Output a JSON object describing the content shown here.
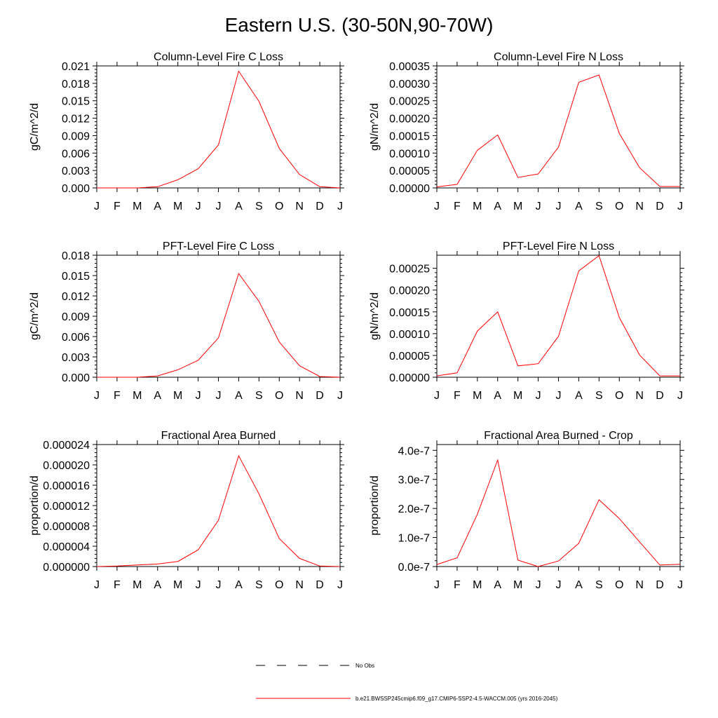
{
  "figure": {
    "title": "Eastern U.S. (30-50N,90-70W)"
  },
  "chart_data": [
    {
      "type": "line",
      "title": "Column-Level Fire C Loss",
      "ylabel": "gC/m^2/d",
      "xlabel": "",
      "categories": [
        "J",
        "F",
        "M",
        "A",
        "M",
        "J",
        "J",
        "A",
        "S",
        "O",
        "N",
        "D",
        "J"
      ],
      "ylim": [
        0,
        0.021
      ],
      "yticks": [
        0,
        0.003,
        0.006,
        0.009,
        0.012,
        0.015,
        0.018,
        0.021
      ],
      "ytick_labels": [
        "0.000",
        "0.003",
        "0.006",
        "0.009",
        "0.012",
        "0.015",
        "0.018",
        "0.021"
      ],
      "series": [
        {
          "name": "b.e21.BWSSP245cmip6.f09_g17.CMIP6-SSP2-4.5-WACCM.005 (yrs 2016-2045)",
          "values": [
            0.0,
            0.0,
            0.0,
            0.0002,
            0.0014,
            0.0033,
            0.0074,
            0.0201,
            0.0149,
            0.0068,
            0.0023,
            0.0002,
            0.0
          ]
        }
      ]
    },
    {
      "type": "line",
      "title": "Column-Level Fire N Loss",
      "ylabel": "gN/m^2/d",
      "xlabel": "",
      "categories": [
        "J",
        "F",
        "M",
        "A",
        "M",
        "J",
        "J",
        "A",
        "S",
        "O",
        "N",
        "D",
        "J"
      ],
      "ylim": [
        0,
        0.00035
      ],
      "yticks": [
        0,
        5e-05,
        0.0001,
        0.00015,
        0.0002,
        0.00025,
        0.0003,
        0.00035
      ],
      "ytick_labels": [
        "0.00000",
        "0.00005",
        "0.00010",
        "0.00015",
        "0.00020",
        "0.00025",
        "0.00030",
        "0.00035"
      ],
      "series": [
        {
          "name": "b.e21.BWSSP245cmip6.f09_g17.CMIP6-SSP2-4.5-WACCM.005 (yrs 2016-2045)",
          "values": [
            3e-06,
            1e-05,
            0.000108,
            0.000152,
            3e-05,
            4e-05,
            0.000117,
            0.000303,
            0.000324,
            0.000156,
            5.8e-05,
            4e-06,
            4e-06
          ]
        }
      ]
    },
    {
      "type": "line",
      "title": "PFT-Level Fire C Loss",
      "ylabel": "gC/m^2/d",
      "xlabel": "",
      "categories": [
        "J",
        "F",
        "M",
        "A",
        "M",
        "J",
        "J",
        "A",
        "S",
        "O",
        "N",
        "D",
        "J"
      ],
      "ylim": [
        0,
        0.018
      ],
      "yticks": [
        0,
        0.003,
        0.006,
        0.009,
        0.012,
        0.015,
        0.018
      ],
      "ytick_labels": [
        "0.000",
        "0.003",
        "0.006",
        "0.009",
        "0.012",
        "0.015",
        "0.018"
      ],
      "series": [
        {
          "name": "b.e21.BWSSP245cmip6.f09_g17.CMIP6-SSP2-4.5-WACCM.005 (yrs 2016-2045)",
          "values": [
            0.0,
            0.0,
            0.0,
            0.0002,
            0.0011,
            0.0025,
            0.0058,
            0.0153,
            0.0112,
            0.0052,
            0.0017,
            0.0001,
            0.0
          ]
        }
      ]
    },
    {
      "type": "line",
      "title": "PFT-Level Fire N Loss",
      "ylabel": "gN/m^2/d",
      "xlabel": "",
      "categories": [
        "J",
        "F",
        "M",
        "A",
        "M",
        "J",
        "J",
        "A",
        "S",
        "O",
        "N",
        "D",
        "J"
      ],
      "ylim": [
        0,
        0.00028
      ],
      "yticks": [
        0,
        5e-05,
        0.0001,
        0.00015,
        0.0002,
        0.00025
      ],
      "ytick_labels": [
        "0.00000",
        "0.00005",
        "0.00010",
        "0.00015",
        "0.00020",
        "0.00025"
      ],
      "series": [
        {
          "name": "b.e21.BWSSP245cmip6.f09_g17.CMIP6-SSP2-4.5-WACCM.005 (yrs 2016-2045)",
          "values": [
            3e-06,
            1e-05,
            0.000106,
            0.00015,
            2.6e-05,
            3.1e-05,
            9.4e-05,
            0.000244,
            0.000279,
            0.000137,
            5.1e-05,
            3e-06,
            3e-06
          ]
        }
      ]
    },
    {
      "type": "line",
      "title": "Fractional Area Burned",
      "ylabel": "proportion/d",
      "xlabel": "",
      "categories": [
        "J",
        "F",
        "M",
        "A",
        "M",
        "J",
        "J",
        "A",
        "S",
        "O",
        "N",
        "D",
        "J"
      ],
      "ylim": [
        0,
        2.4e-05
      ],
      "yticks": [
        0,
        4e-06,
        8e-06,
        1.2e-05,
        1.6e-05,
        2e-05,
        2.4e-05
      ],
      "ytick_labels": [
        "0.000000",
        "0.000004",
        "0.000008",
        "0.000012",
        "0.000016",
        "0.000020",
        "0.000024"
      ],
      "series": [
        {
          "name": "b.e21.BWSSP245cmip6.f09_g17.CMIP6-SSP2-4.5-WACCM.005 (yrs 2016-2045)",
          "values": [
            0.0,
            1e-07,
            3e-07,
            5e-07,
            1e-06,
            3.3e-06,
            9.1e-06,
            2.18e-05,
            1.43e-05,
            5.5e-06,
            1.6e-06,
            1e-07,
            0.0
          ]
        }
      ]
    },
    {
      "type": "line",
      "title": "Fractional Area Burned - Crop",
      "ylabel": "proportion/d",
      "xlabel": "",
      "categories": [
        "J",
        "F",
        "M",
        "A",
        "M",
        "J",
        "J",
        "A",
        "S",
        "O",
        "N",
        "D",
        "J"
      ],
      "ylim": [
        0,
        4.2e-07
      ],
      "yticks": [
        0,
        1e-07,
        2e-07,
        3e-07,
        4e-07
      ],
      "ytick_labels": [
        "0.0e-7",
        "1.0e-7",
        "2.0e-7",
        "3.0e-7",
        "4.0e-7"
      ],
      "series": [
        {
          "name": "b.e21.BWSSP245cmip6.f09_g17.CMIP6-SSP2-4.5-WACCM.005 (yrs 2016-2045)",
          "values": [
            7e-09,
            3e-08,
            1.8e-07,
            3.67e-07,
            2.2e-08,
            0.0,
            1.9e-08,
            8e-08,
            2.3e-07,
            1.65e-07,
            8.5e-08,
            5e-09,
            8e-09
          ]
        }
      ]
    }
  ],
  "legend": {
    "items": [
      {
        "label": "No Obs",
        "style": "dashed",
        "color": "#000000"
      },
      {
        "label": "b.e21.BWSSP245cmip6.f09_g17.CMIP6-SSP2-4.5-WACCM.005 (yrs 2016-2045)",
        "style": "solid",
        "color": "#ff0000"
      }
    ]
  },
  "colors": {
    "series": "#ff0000",
    "axes": "#000000"
  }
}
